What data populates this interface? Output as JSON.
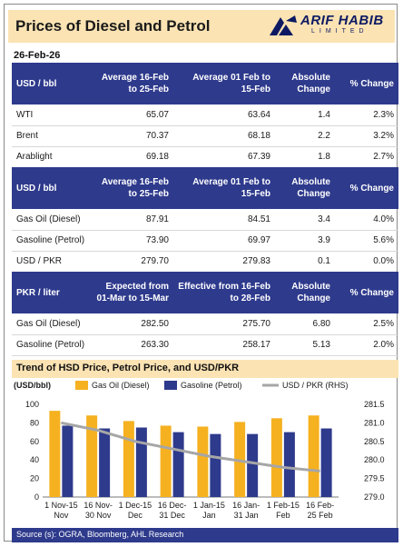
{
  "header": {
    "title": "Prices of Diesel and Petrol",
    "logo_name": "ARIF HABIB",
    "logo_sub": "LIMITED"
  },
  "date": "26-Feb-26",
  "table1": {
    "headers": [
      "USD / bbl",
      "Average 16-Feb to 25-Feb",
      "Average 01 Feb to 15-Feb",
      "Absolute Change",
      "% Change"
    ],
    "rows": [
      [
        "WTI",
        "65.07",
        "63.64",
        "1.4",
        "2.3%"
      ],
      [
        "Brent",
        "70.37",
        "68.18",
        "2.2",
        "3.2%"
      ],
      [
        "Arablight",
        "69.18",
        "67.39",
        "1.8",
        "2.7%"
      ]
    ]
  },
  "table2": {
    "headers": [
      "USD / bbl",
      "Average 16-Feb to 25-Feb",
      "Average 01 Feb to 15-Feb",
      "Absolute Change",
      "% Change"
    ],
    "rows": [
      [
        "Gas Oil (Diesel)",
        "87.91",
        "84.51",
        "3.4",
        "4.0%"
      ],
      [
        "Gasoline (Petrol)",
        "73.90",
        "69.97",
        "3.9",
        "5.6%"
      ],
      [
        "USD / PKR",
        "279.70",
        "279.83",
        "0.1",
        "0.0%"
      ]
    ]
  },
  "table3": {
    "headers": [
      "PKR / liter",
      "Expected from 01-Mar to 15-Mar",
      "Effective from 16-Feb to 28-Feb",
      "Absolute Change",
      "% Change"
    ],
    "rows": [
      [
        "Gas Oil (Diesel)",
        "282.50",
        "275.70",
        "6.80",
        "2.5%"
      ],
      [
        "Gasoline (Petrol)",
        "263.30",
        "258.17",
        "5.13",
        "2.0%"
      ]
    ]
  },
  "trend_title": "Trend of HSD Price, Petrol Price, and USD/PKR",
  "source": "Source (s): OGRA, Bloomberg, AHL Research",
  "colors": {
    "diesel": "#f5b120",
    "petrol": "#2e3a8c",
    "usdpkr": "#a6a6a6",
    "header_blue": "#2e3a8c",
    "header_beige": "#fbe3b3"
  },
  "chart_data": {
    "type": "bar",
    "ylabel": "(USD/bbl)",
    "categories": [
      "1 Nov-15 Nov",
      "16 Nov-30 Nov",
      "1 Dec-15 Dec",
      "16 Dec-31 Dec",
      "1 Jan-15 Jan",
      "16 Jan-31 Jan",
      "1 Feb-15 Feb",
      "16 Feb-25 Feb"
    ],
    "category_lines": [
      [
        "1 Nov-15",
        "Nov"
      ],
      [
        "16 Nov-",
        "30 Nov"
      ],
      [
        "1 Dec-15",
        "Dec"
      ],
      [
        "16 Dec-",
        "31 Dec"
      ],
      [
        "1 Jan-15",
        "Jan"
      ],
      [
        "16 Jan-",
        "31 Jan"
      ],
      [
        "1 Feb-15",
        "Feb"
      ],
      [
        "16 Feb-",
        "25 Feb"
      ]
    ],
    "series": [
      {
        "name": "Gas Oil (Diesel)",
        "values": [
          93,
          88,
          82,
          77,
          76,
          81,
          85,
          88
        ]
      },
      {
        "name": "Gasoline (Petrol)",
        "values": [
          77,
          74,
          75,
          70,
          68,
          68,
          70,
          74
        ]
      },
      {
        "name": "USD / PKR (RHS)",
        "values": [
          281.0,
          280.8,
          280.5,
          280.3,
          280.1,
          279.95,
          279.8,
          279.7
        ],
        "axis": "right",
        "type": "line"
      }
    ],
    "ylim": [
      0,
      100
    ],
    "yticks": [
      "0",
      "20",
      "40",
      "60",
      "80",
      "100"
    ],
    "y2lim": [
      279.0,
      281.5
    ],
    "y2ticks": [
      "279.0",
      "279.5",
      "280.0",
      "280.5",
      "281.0",
      "281.5"
    ],
    "legend_position": "top",
    "grid": false
  }
}
